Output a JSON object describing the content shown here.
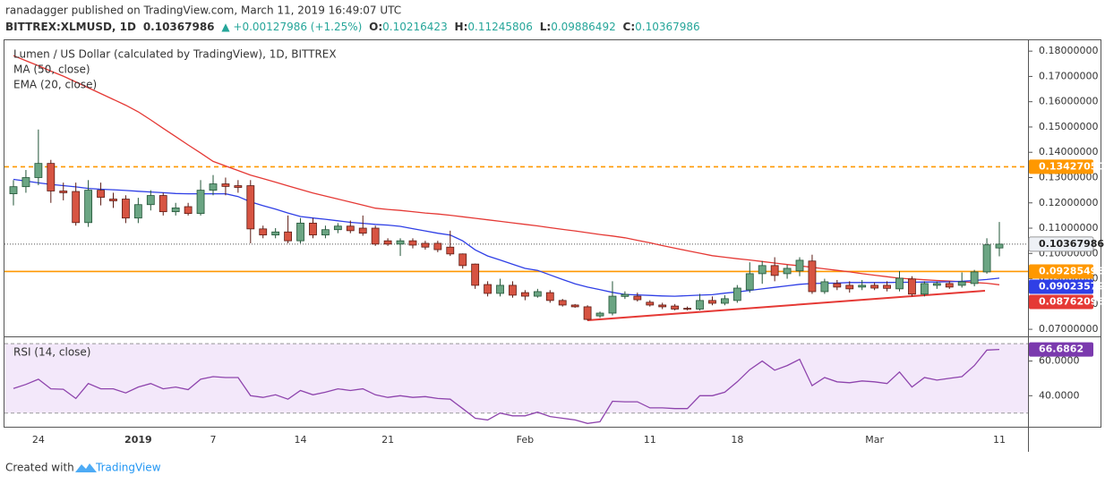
{
  "header": {
    "author": "ranadagger published on TradingView.com, March 11, 2019 16:49:07 UTC",
    "symbol": "BITTREX:XLMUSD, 1D",
    "price": "0.10367986",
    "change": "▲ +0.00127986 (+1.25%)",
    "ohlc": [
      {
        "label": "O:",
        "value": "0.10216423"
      },
      {
        "label": "H:",
        "value": "0.11245806"
      },
      {
        "label": "L:",
        "value": "0.09886492"
      },
      {
        "label": "C:",
        "value": "0.10367986"
      }
    ]
  },
  "footer": {
    "prefix": "Created with",
    "brand": "TradingView"
  },
  "chart_data": [
    {
      "type": "candlestick",
      "title": "Lumen / US Dollar (calculated by TradingView), 1D, BITTREX",
      "categories": [
        null,
        null,
        "24",
        null,
        null,
        null,
        null,
        null,
        null,
        null,
        "2019",
        null,
        null,
        null,
        null,
        null,
        "7",
        null,
        null,
        null,
        null,
        null,
        null,
        "14",
        null,
        null,
        null,
        null,
        null,
        null,
        "21",
        null,
        null,
        null,
        null,
        null,
        null,
        null,
        null,
        null,
        null,
        "Feb",
        null,
        null,
        null,
        null,
        null,
        null,
        null,
        null,
        null,
        "11",
        null,
        null,
        null,
        null,
        null,
        null,
        "18",
        null,
        null,
        null,
        null,
        null,
        null,
        null,
        null,
        null,
        null,
        "Mar",
        null,
        null,
        null,
        null,
        null,
        null,
        null,
        null,
        null,
        "11"
      ],
      "open": [
        0.1236,
        0.1264,
        0.13,
        0.1356,
        0.1247,
        0.1245,
        0.1122,
        0.125,
        0.1215,
        0.1215,
        0.114,
        0.1193,
        0.1229,
        0.1165,
        0.1185,
        0.1158,
        0.125,
        0.1275,
        0.1268,
        0.1268,
        0.1097,
        0.1073,
        0.1085,
        0.105,
        0.112,
        0.1073,
        0.1094,
        0.1108,
        0.11,
        0.11,
        0.105,
        0.1037,
        0.105,
        0.104,
        0.104,
        0.1025,
        0.0998,
        0.0958,
        0.0877,
        0.0842,
        0.0874,
        0.0845,
        0.0831,
        0.0845,
        0.0814,
        0.0796,
        0.0789,
        0.0753,
        0.0764,
        0.083,
        0.0831,
        0.0807,
        0.0796,
        0.0792,
        0.0783,
        0.078,
        0.0814,
        0.0803,
        0.0814,
        0.0856,
        0.092,
        0.0952,
        0.092,
        0.0931,
        0.097,
        0.0849,
        0.0881,
        0.0874,
        0.0867,
        0.0874,
        0.0874,
        0.086,
        0.0899,
        0.0839,
        0.0874,
        0.0881,
        0.0874,
        0.0881,
        0.0927,
        0.10216423
      ],
      "high": [
        0.129,
        0.133,
        0.149,
        0.137,
        0.128,
        0.128,
        0.129,
        0.128,
        0.124,
        0.123,
        0.122,
        0.125,
        0.124,
        0.12,
        0.12,
        0.129,
        0.131,
        0.13,
        0.129,
        0.129,
        0.111,
        0.11,
        0.115,
        0.114,
        0.114,
        0.111,
        0.112,
        0.113,
        0.115,
        0.111,
        0.106,
        0.106,
        0.106,
        0.105,
        0.105,
        0.109,
        0.1,
        0.096,
        0.089,
        0.09,
        0.089,
        0.0855,
        0.086,
        0.0855,
        0.082,
        0.08,
        0.0795,
        0.077,
        0.089,
        0.085,
        0.0845,
        0.0815,
        0.0805,
        0.08,
        0.079,
        0.084,
        0.083,
        0.0835,
        0.0875,
        0.0965,
        0.097,
        0.0985,
        0.0955,
        0.0985,
        0.0995,
        0.09,
        0.0895,
        0.089,
        0.0895,
        0.0885,
        0.089,
        0.093,
        0.091,
        0.089,
        0.089,
        0.089,
        0.0925,
        0.0935,
        0.106,
        0.11245806
      ],
      "low": [
        0.119,
        0.124,
        0.127,
        0.12,
        0.121,
        0.111,
        0.1105,
        0.119,
        0.118,
        0.112,
        0.112,
        0.117,
        0.115,
        0.115,
        0.115,
        0.115,
        0.123,
        0.123,
        0.124,
        0.104,
        0.106,
        0.106,
        0.104,
        0.104,
        0.106,
        0.106,
        0.108,
        0.108,
        0.107,
        0.103,
        0.103,
        0.099,
        0.102,
        0.1015,
        0.1005,
        0.099,
        0.094,
        0.086,
        0.083,
        0.083,
        0.0825,
        0.0815,
        0.0825,
        0.0805,
        0.079,
        0.0785,
        0.0735,
        0.0745,
        0.0755,
        0.082,
        0.081,
        0.079,
        0.078,
        0.0775,
        0.0775,
        0.0775,
        0.0795,
        0.0795,
        0.0805,
        0.0845,
        0.088,
        0.089,
        0.09,
        0.091,
        0.084,
        0.084,
        0.0855,
        0.0845,
        0.0855,
        0.0855,
        0.085,
        0.085,
        0.083,
        0.083,
        0.086,
        0.086,
        0.0865,
        0.087,
        0.092,
        0.09886492
      ],
      "close": [
        0.1264,
        0.13,
        0.1356,
        0.1247,
        0.124,
        0.1122,
        0.125,
        0.1222,
        0.1208,
        0.114,
        0.1193,
        0.1229,
        0.1165,
        0.118,
        0.1158,
        0.125,
        0.1275,
        0.1265,
        0.1261,
        0.1097,
        0.1073,
        0.1085,
        0.105,
        0.112,
        0.1073,
        0.1094,
        0.1108,
        0.109,
        0.108,
        0.1037,
        0.1037,
        0.105,
        0.1033,
        0.1025,
        0.1015,
        0.0998,
        0.0952,
        0.0874,
        0.0842,
        0.0874,
        0.0835,
        0.0831,
        0.0849,
        0.0814,
        0.0796,
        0.0789,
        0.0739,
        0.0764,
        0.0831,
        0.0838,
        0.0817,
        0.0796,
        0.0789,
        0.078,
        0.078,
        0.0814,
        0.0803,
        0.0821,
        0.0863,
        0.092,
        0.0952,
        0.0913,
        0.0941,
        0.0973,
        0.0849,
        0.0888,
        0.0867,
        0.086,
        0.0874,
        0.0863,
        0.0862,
        0.0902,
        0.0839,
        0.0881,
        0.0881,
        0.0867,
        0.0888,
        0.0927,
        0.1034,
        0.10367986
      ],
      "up_color": "#6ba583",
      "down_color": "#d75442",
      "lines": [
        {
          "name": "MA (50, close)",
          "color": "#e53935",
          "values": [
            0.1782,
            0.1762,
            0.1742,
            0.1721,
            0.1701,
            0.1678,
            0.1655,
            0.1632,
            0.1609,
            0.1586,
            0.156,
            0.1528,
            0.1495,
            0.1462,
            0.1429,
            0.1397,
            0.1364,
            0.1346,
            0.1328,
            0.131,
            0.1296,
            0.1282,
            0.1267,
            0.1253,
            0.1239,
            0.1227,
            0.1215,
            0.1203,
            0.1191,
            0.1179,
            0.1174,
            0.117,
            0.1165,
            0.116,
            0.1156,
            0.1151,
            0.1145,
            0.1139,
            0.1133,
            0.1127,
            0.1121,
            0.1115,
            0.1109,
            0.1102,
            0.1095,
            0.1089,
            0.1082,
            0.1075,
            0.1069,
            0.1062,
            0.1052,
            0.1042,
            0.1031,
            0.1021,
            0.1011,
            0.1001,
            0.0991,
            0.0985,
            0.0979,
            0.0974,
            0.0968,
            0.0962,
            0.0956,
            0.0951,
            0.0945,
            0.0939,
            0.0933,
            0.0927,
            0.092,
            0.0914,
            0.0908,
            0.0902,
            0.0899,
            0.0896,
            0.0893,
            0.0891,
            0.0888,
            0.0885,
            0.0882,
            0.08762096
          ]
        },
        {
          "name": "EMA (20, close)",
          "color": "#2f3fe6",
          "values": [
            0.1293,
            0.1286,
            0.1279,
            0.1273,
            0.1268,
            0.1263,
            0.1257,
            0.1254,
            0.1252,
            0.1249,
            0.1246,
            0.1243,
            0.124,
            0.1237,
            0.1236,
            0.1236,
            0.1236,
            0.1236,
            0.1225,
            0.1204,
            0.1189,
            0.1175,
            0.116,
            0.1146,
            0.114,
            0.1135,
            0.1129,
            0.1123,
            0.1119,
            0.1115,
            0.1112,
            0.1107,
            0.1098,
            0.1089,
            0.108,
            0.1073,
            0.105,
            0.1014,
            0.099,
            0.0974,
            0.0957,
            0.0941,
            0.0933,
            0.0915,
            0.0897,
            0.088,
            0.0867,
            0.0857,
            0.0846,
            0.0838,
            0.0836,
            0.0834,
            0.0832,
            0.0831,
            0.0833,
            0.0835,
            0.0837,
            0.0843,
            0.0848,
            0.0854,
            0.086,
            0.0866,
            0.0872,
            0.0878,
            0.0881,
            0.0882,
            0.0883,
            0.0885,
            0.0885,
            0.0885,
            0.0885,
            0.0886,
            0.0886,
            0.0887,
            0.0887,
            0.0888,
            0.089,
            0.0893,
            0.0897,
            0.09023579
          ]
        }
      ],
      "markers": [
        {
          "value": 0.1342705,
          "label": "0.13427050",
          "color": "#ff9800",
          "line": "dashed"
        },
        {
          "value": 0.10367986,
          "label": "0.10367986",
          "color": "#eef1f6",
          "line": "dotted"
        },
        {
          "value": 0.09285498,
          "label": "0.09285498",
          "color": "#ff9800",
          "line": "solid"
        },
        {
          "value": 0.09023579,
          "label": "0.09023579",
          "color": "#2f3fe6"
        },
        {
          "value": 0.08762096,
          "label": "0.08762096",
          "color": "#e53935"
        }
      ],
      "ylim": [
        0.0672,
        0.1843
      ],
      "yticks": [
        {
          "value": 0.07,
          "label": "0.07000000"
        },
        {
          "value": 0.08,
          "label": "0.08000000"
        },
        {
          "value": 0.09,
          "label": "0.09000000"
        },
        {
          "value": 0.1,
          "label": "0.10000000"
        },
        {
          "value": 0.11,
          "label": "0.11000000"
        },
        {
          "value": 0.12,
          "label": "0.12000000"
        },
        {
          "value": 0.13,
          "label": "0.13000000"
        },
        {
          "value": 0.14,
          "label": "0.14000000"
        },
        {
          "value": 0.15,
          "label": "0.15000000"
        },
        {
          "value": 0.16,
          "label": "0.16000000"
        },
        {
          "value": 0.17,
          "label": "0.17000000"
        },
        {
          "value": 0.18,
          "label": "0.18000000"
        }
      ]
    },
    {
      "type": "line",
      "title": "RSI (14, close)",
      "color": "#8e44ad",
      "values": [
        44.2,
        46.5,
        49.5,
        44,
        43.7,
        38.4,
        47,
        44,
        44,
        41.6,
        45,
        47,
        44,
        45,
        43.5,
        49.5,
        51,
        50.5,
        50.5,
        40,
        39,
        40.5,
        38,
        43,
        40.5,
        42,
        44,
        43,
        44,
        40.5,
        39,
        40,
        39,
        39.5,
        38.4,
        38,
        32.6,
        27,
        26,
        30,
        28.4,
        28.4,
        30.5,
        28,
        27,
        26,
        24,
        25,
        36.8,
        36.5,
        36.5,
        33,
        33,
        32.6,
        32.6,
        40,
        40,
        42,
        48,
        55,
        60,
        54.7,
        57.4,
        61,
        45.8,
        50.5,
        48,
        47.5,
        48.5,
        48,
        47,
        53.7,
        45,
        50.5,
        49,
        50,
        51,
        57.4,
        66.3,
        66.6862
      ],
      "band": [
        30,
        70
      ],
      "band_color": "#f3e8fa",
      "markers": [
        {
          "value": 66.6862,
          "label": "66.6862",
          "color": "#7b3aae"
        }
      ],
      "ylim": [
        22.1,
        73.7
      ],
      "yticks": [
        {
          "value": 40,
          "label": "40.0000"
        },
        {
          "value": 60,
          "label": "60.0000"
        }
      ]
    }
  ]
}
